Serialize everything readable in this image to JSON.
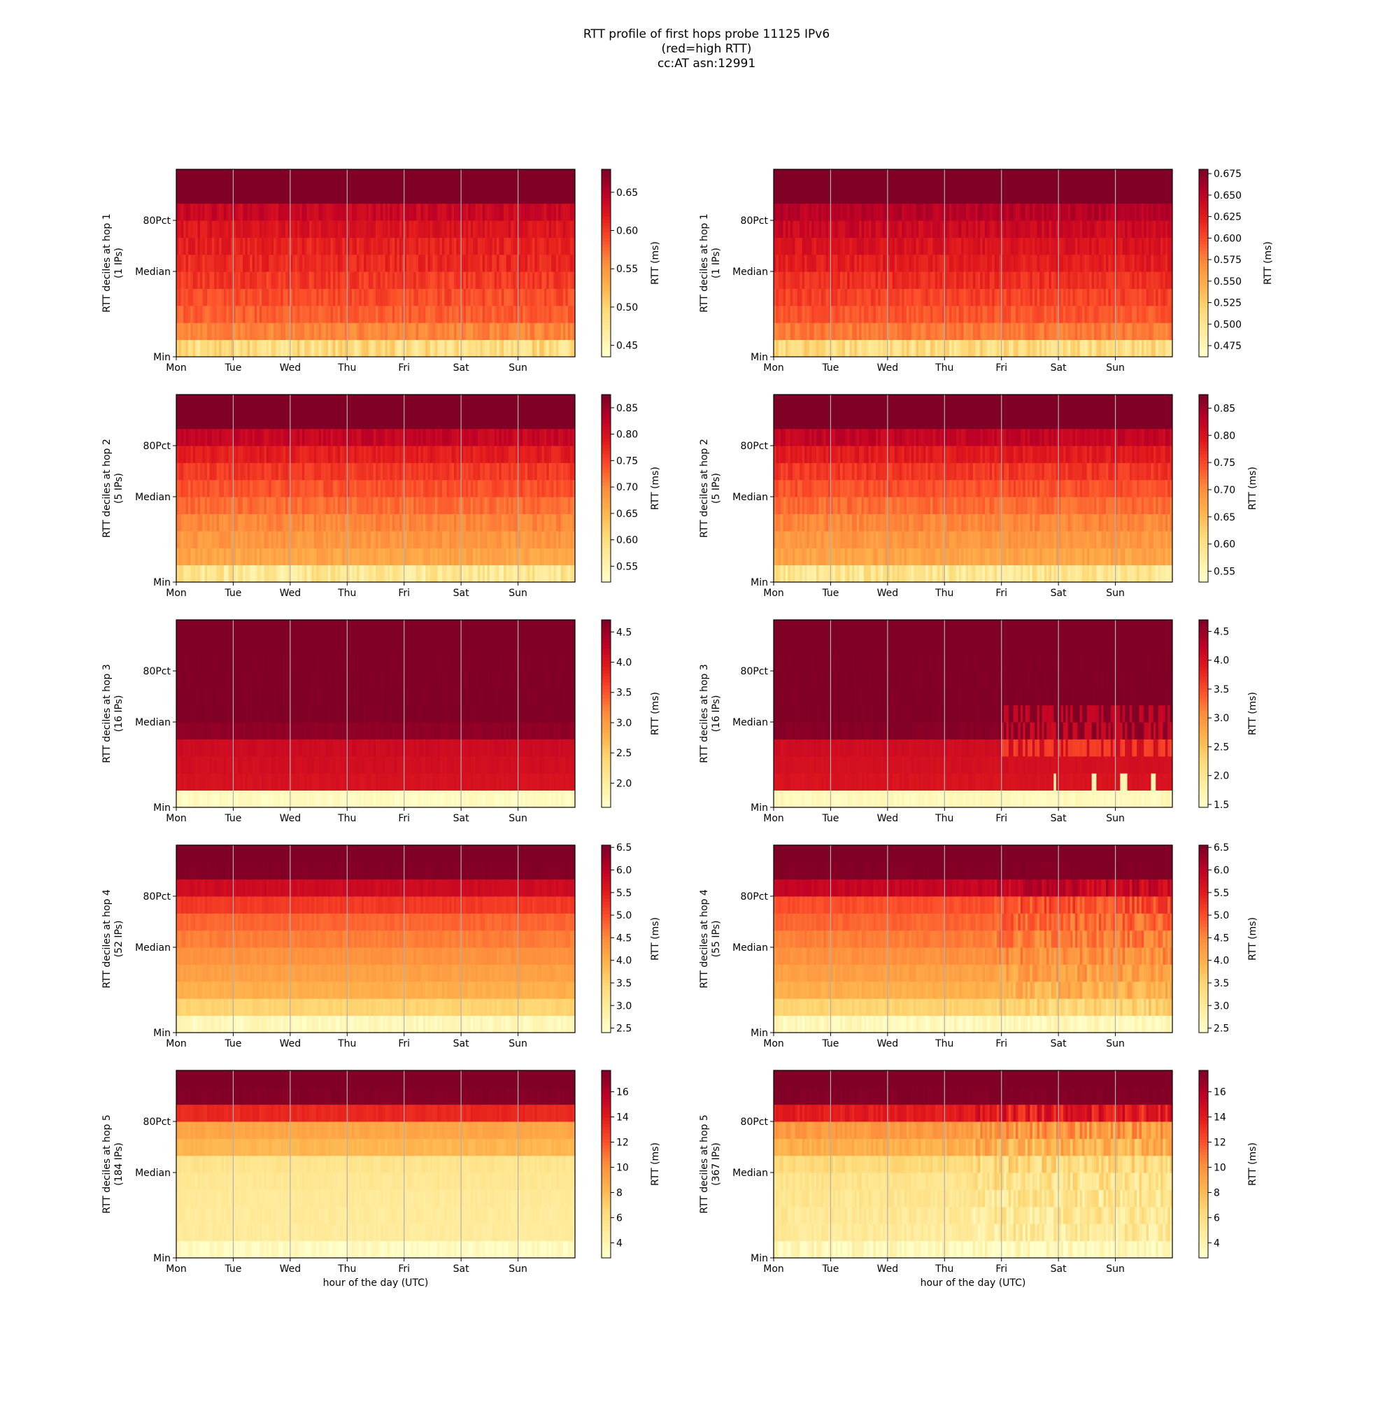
{
  "title_lines": [
    "RTT profile of first hops probe 11125 IPv6",
    "(red=high RTT)",
    "cc:AT asn:12991"
  ],
  "colormap": "YlOrRd",
  "colormap_stops": [
    "#ffffcc",
    "#ffeda0",
    "#fed976",
    "#feb24c",
    "#fd8d3c",
    "#fc4e2a",
    "#e31a1c",
    "#bd0026",
    "#800026"
  ],
  "x_tick_labels": [
    "Mon",
    "Tue",
    "Wed",
    "Thu",
    "Fri",
    "Sat",
    "Sun"
  ],
  "x_axis_label": "hour of the day (UTC)",
  "y_tick_labels": [
    "80Pct",
    "Median",
    "Min"
  ],
  "colorbar_label": "RTT (ms)",
  "grid_color": "#b0b0b0",
  "chart_data": [
    {
      "type": "heatmap",
      "hop": 1,
      "ylabel": "RTT deciles at hop 1",
      "ips": "(1 IPs)",
      "x_ticks": [
        "Mon",
        "Tue",
        "Wed",
        "Thu",
        "Fri",
        "Sat",
        "Sun"
      ],
      "xlabel": "",
      "clim": [
        0.435,
        0.68
      ],
      "cbar_ticks": [
        "0.45",
        "0.50",
        "0.55",
        "0.60",
        "0.65"
      ],
      "cbar_values": [
        0.45,
        0.5,
        0.55,
        0.6,
        0.65
      ],
      "deciles": [
        0.49,
        0.56,
        0.58,
        0.59,
        0.6,
        0.61,
        0.615,
        0.625,
        0.64,
        0.68,
        0.69
      ],
      "row_noise": 0.012,
      "row_events": []
    },
    {
      "type": "heatmap",
      "hop": 1,
      "ylabel": "RTT deciles at hop 1",
      "ips": "(1 IPs)",
      "x_ticks": [
        "Mon",
        "Tue",
        "Wed",
        "Thu",
        "Fri",
        "Sat",
        "Sun"
      ],
      "xlabel": "",
      "clim": [
        0.462,
        0.68
      ],
      "cbar_ticks": [
        "0.475",
        "0.500",
        "0.525",
        "0.550",
        "0.575",
        "0.600",
        "0.625",
        "0.650",
        "0.675"
      ],
      "cbar_values": [
        0.475,
        0.5,
        0.525,
        0.55,
        0.575,
        0.6,
        0.625,
        0.65,
        0.675
      ],
      "deciles": [
        0.51,
        0.58,
        0.595,
        0.605,
        0.615,
        0.625,
        0.632,
        0.642,
        0.655,
        0.68,
        0.69
      ],
      "row_noise": 0.01,
      "row_events": []
    },
    {
      "type": "heatmap",
      "hop": 2,
      "ylabel": "RTT deciles at hop 2",
      "ips": "(5 IPs)",
      "x_ticks": [
        "Mon",
        "Tue",
        "Wed",
        "Thu",
        "Fri",
        "Sat",
        "Sun"
      ],
      "xlabel": "",
      "clim": [
        0.52,
        0.875
      ],
      "cbar_ticks": [
        "0.55",
        "0.60",
        "0.65",
        "0.70",
        "0.75",
        "0.80",
        "0.85"
      ],
      "cbar_values": [
        0.55,
        0.6,
        0.65,
        0.7,
        0.75,
        0.8,
        0.85
      ],
      "deciles": [
        0.58,
        0.67,
        0.685,
        0.7,
        0.72,
        0.74,
        0.76,
        0.785,
        0.82,
        0.875,
        0.88
      ],
      "row_noise": 0.015,
      "row_events": []
    },
    {
      "type": "heatmap",
      "hop": 2,
      "ylabel": "RTT deciles at hop 2",
      "ips": "(5 IPs)",
      "x_ticks": [
        "Mon",
        "Tue",
        "Wed",
        "Thu",
        "Fri",
        "Sat",
        "Sun"
      ],
      "xlabel": "",
      "clim": [
        0.53,
        0.875
      ],
      "cbar_ticks": [
        "0.55",
        "0.60",
        "0.65",
        "0.70",
        "0.75",
        "0.80",
        "0.85"
      ],
      "cbar_values": [
        0.55,
        0.6,
        0.65,
        0.7,
        0.75,
        0.8,
        0.85
      ],
      "deciles": [
        0.59,
        0.675,
        0.69,
        0.705,
        0.725,
        0.745,
        0.765,
        0.79,
        0.825,
        0.875,
        0.88
      ],
      "row_noise": 0.015,
      "row_events": []
    },
    {
      "type": "heatmap",
      "hop": 3,
      "ylabel": "RTT deciles at hop 3",
      "ips": "(16 IPs)",
      "x_ticks": [
        "Mon",
        "Tue",
        "Wed",
        "Thu",
        "Fri",
        "Sat",
        "Sun"
      ],
      "xlabel": "",
      "clim": [
        1.6,
        4.7
      ],
      "cbar_ticks": [
        "2.0",
        "2.5",
        "3.0",
        "3.5",
        "4.0",
        "4.5"
      ],
      "cbar_values": [
        2.0,
        2.5,
        3.0,
        3.5,
        4.0,
        4.5
      ],
      "deciles": [
        1.7,
        4.05,
        4.1,
        4.15,
        4.6,
        4.7,
        4.7,
        4.7,
        4.7,
        4.7,
        4.7
      ],
      "row_noise": 0.04,
      "row_events": []
    },
    {
      "type": "heatmap",
      "hop": 3,
      "ylabel": "RTT deciles at hop 3",
      "ips": "(16 IPs)",
      "x_ticks": [
        "Mon",
        "Tue",
        "Wed",
        "Thu",
        "Fri",
        "Sat",
        "Sun"
      ],
      "xlabel": "",
      "clim": [
        1.45,
        4.7
      ],
      "cbar_ticks": [
        "1.5",
        "2.0",
        "2.5",
        "3.0",
        "3.5",
        "4.0",
        "4.5"
      ],
      "cbar_values": [
        1.5,
        2.0,
        2.5,
        3.0,
        3.5,
        4.0,
        4.5
      ],
      "deciles": [
        1.6,
        4.0,
        4.05,
        4.1,
        4.65,
        4.7,
        4.7,
        4.7,
        4.7,
        4.7,
        4.7
      ],
      "row_noise": 0.04,
      "row_events": [
        {
          "from": 0.57,
          "rows": [
            3,
            4,
            5
          ],
          "drop": 0.5
        },
        {
          "from": 0.7,
          "rows": [
            1
          ],
          "low": 1.7,
          "at": [
            0.7,
            0.8,
            0.87,
            0.88,
            0.95
          ]
        }
      ]
    },
    {
      "type": "heatmap",
      "hop": 4,
      "ylabel": "RTT deciles at hop 4",
      "ips": "(52 IPs)",
      "x_ticks": [
        "Mon",
        "Tue",
        "Wed",
        "Thu",
        "Fri",
        "Sat",
        "Sun"
      ],
      "xlabel": "",
      "clim": [
        2.4,
        6.55
      ],
      "cbar_ticks": [
        "2.5",
        "3.0",
        "3.5",
        "4.0",
        "4.5",
        "5.0",
        "5.5",
        "6.0",
        "6.5"
      ],
      "cbar_values": [
        2.5,
        3.0,
        3.5,
        4.0,
        4.5,
        5.0,
        5.5,
        6.0,
        6.5
      ],
      "deciles": [
        2.6,
        3.5,
        4.0,
        4.2,
        4.4,
        4.6,
        4.8,
        5.2,
        5.8,
        6.5,
        6.6
      ],
      "row_noise": 0.08,
      "row_events": []
    },
    {
      "type": "heatmap",
      "hop": 4,
      "ylabel": "RTT deciles at hop 4",
      "ips": "(55 IPs)",
      "x_ticks": [
        "Mon",
        "Tue",
        "Wed",
        "Thu",
        "Fri",
        "Sat",
        "Sun"
      ],
      "xlabel": "",
      "clim": [
        2.4,
        6.55
      ],
      "cbar_ticks": [
        "2.5",
        "3.0",
        "3.5",
        "4.0",
        "4.5",
        "5.0",
        "5.5",
        "6.0",
        "6.5"
      ],
      "cbar_values": [
        2.5,
        3.0,
        3.5,
        4.0,
        4.5,
        5.0,
        5.5,
        6.0,
        6.5
      ],
      "deciles": [
        2.6,
        3.5,
        4.0,
        4.2,
        4.4,
        4.6,
        4.8,
        5.0,
        5.9,
        6.5,
        6.6
      ],
      "row_noise": 0.1,
      "row_events": [
        {
          "from": 0.55,
          "noise": 0.35
        }
      ]
    },
    {
      "type": "heatmap",
      "hop": 5,
      "ylabel": "RTT deciles at hop 5",
      "ips": "(184 IPs)",
      "x_ticks": [
        "Mon",
        "Tue",
        "Wed",
        "Thu",
        "Fri",
        "Sat",
        "Sun"
      ],
      "xlabel": "hour of the day (UTC)",
      "clim": [
        2.8,
        17.7
      ],
      "cbar_ticks": [
        "4",
        "6",
        "8",
        "10",
        "12",
        "14",
        "16"
      ],
      "cbar_values": [
        4,
        6,
        8,
        10,
        12,
        14,
        16
      ],
      "deciles": [
        3.3,
        4.8,
        4.9,
        5.0,
        5.2,
        5.5,
        8.2,
        9.0,
        13.5,
        17.5,
        17.7
      ],
      "row_noise": 0.3,
      "row_events": []
    },
    {
      "type": "heatmap",
      "hop": 5,
      "ylabel": "RTT deciles at hop 5",
      "ips": "(367 IPs)",
      "x_ticks": [
        "Mon",
        "Tue",
        "Wed",
        "Thu",
        "Fri",
        "Sat",
        "Sun"
      ],
      "xlabel": "hour of the day (UTC)",
      "clim": [
        2.8,
        17.7
      ],
      "cbar_ticks": [
        "4",
        "6",
        "8",
        "10",
        "12",
        "14",
        "16"
      ],
      "cbar_values": [
        4,
        6,
        8,
        10,
        12,
        14,
        16
      ],
      "deciles": [
        3.4,
        4.9,
        5.1,
        5.3,
        5.6,
        6.3,
        8.5,
        9.6,
        14.0,
        17.5,
        17.7
      ],
      "row_noise": 0.6,
      "row_events": [
        {
          "from": 0.5,
          "noise": 1.6
        }
      ]
    }
  ]
}
